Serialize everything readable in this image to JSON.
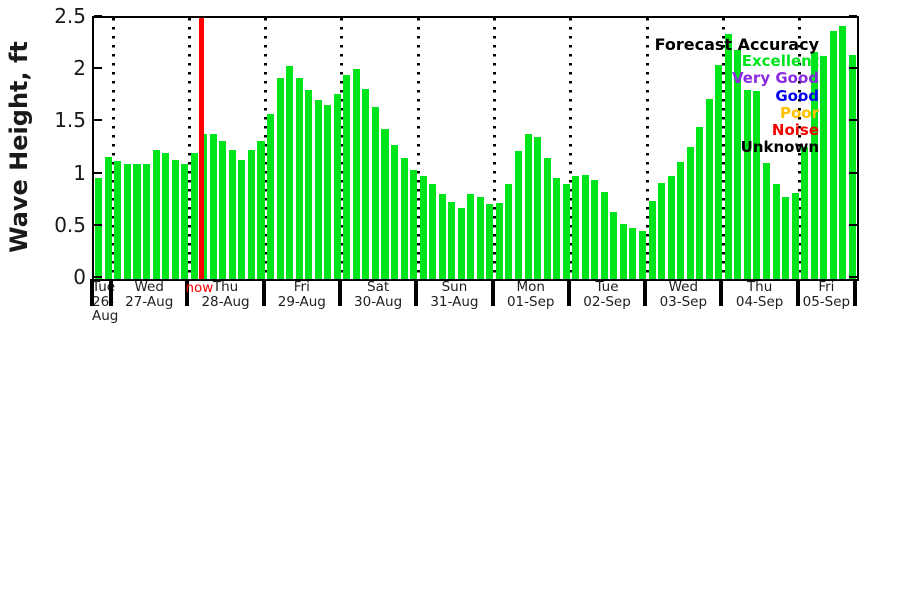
{
  "chart_data": {
    "type": "bar",
    "title": "",
    "ylabel": "Wave Height, ft",
    "xlabel": "",
    "ylim": [
      0,
      2.5
    ],
    "yticks": [
      "0",
      "0.5",
      "1",
      "1.5",
      "2",
      "2.5"
    ],
    "grid": "vertical-dotted-day-separators",
    "bar_color": "#00E41C",
    "days": [
      {
        "weekday": "Tue",
        "date": "26-Aug",
        "slots": 2,
        "values": [
          0.97,
          1.17
        ]
      },
      {
        "weekday": "Wed",
        "date": "27-Aug",
        "slots": 8,
        "values": [
          1.13,
          1.1,
          1.1,
          1.1,
          1.24,
          1.21,
          1.14,
          1.1
        ]
      },
      {
        "weekday": "Thu",
        "date": "28-Aug",
        "slots": 8,
        "values": [
          1.21,
          1.39,
          1.39,
          1.32,
          1.24,
          1.14,
          1.24,
          1.32
        ]
      },
      {
        "weekday": "Fri",
        "date": "29-Aug",
        "slots": 8,
        "values": [
          1.58,
          1.93,
          2.04,
          1.93,
          1.81,
          1.71,
          1.67,
          1.77
        ]
      },
      {
        "weekday": "Sat",
        "date": "30-Aug",
        "slots": 8,
        "values": [
          1.95,
          2.01,
          1.82,
          1.65,
          1.44,
          1.28,
          1.16,
          1.04
        ]
      },
      {
        "weekday": "Sun",
        "date": "31-Aug",
        "slots": 8,
        "values": [
          0.99,
          0.91,
          0.81,
          0.74,
          0.68,
          0.81,
          0.79,
          0.72
        ]
      },
      {
        "weekday": "Mon",
        "date": "01-Sep",
        "slots": 8,
        "values": [
          0.73,
          0.91,
          1.23,
          1.39,
          1.36,
          1.16,
          0.97,
          0.91
        ]
      },
      {
        "weekday": "Tue",
        "date": "02-Sep",
        "slots": 8,
        "values": [
          0.99,
          1.0,
          0.95,
          0.83,
          0.64,
          0.53,
          0.49,
          0.46
        ]
      },
      {
        "weekday": "Wed",
        "date": "03-Sep",
        "slots": 8,
        "values": [
          0.75,
          0.92,
          0.99,
          1.12,
          1.26,
          1.46,
          1.72,
          2.05
        ]
      },
      {
        "weekday": "Thu",
        "date": "04-Sep",
        "slots": 8,
        "values": [
          2.35,
          2.19,
          1.81,
          1.8,
          1.11,
          0.91,
          0.79,
          0.82
        ]
      },
      {
        "weekday": "Fri",
        "date": "05-Sep",
        "slots": 6,
        "values": [
          1.26,
          2.17,
          2.14,
          2.38,
          2.42,
          2.15
        ]
      }
    ],
    "now_marker": {
      "label": "now",
      "color": "#FF0000",
      "day_index": 2,
      "after_slot": 1
    },
    "legend": {
      "title": "Forecast Accuracy",
      "position": "top-right",
      "entries": [
        {
          "label": "Excellent",
          "color": "#00E41C"
        },
        {
          "label": "Very Good",
          "color": "#8A2BE2"
        },
        {
          "label": "Good",
          "color": "#0000F0"
        },
        {
          "label": "Poor",
          "color": "#FFC100"
        },
        {
          "label": "Noise",
          "color": "#F50000"
        },
        {
          "label": "Unknown",
          "color": "#000000"
        }
      ]
    }
  }
}
